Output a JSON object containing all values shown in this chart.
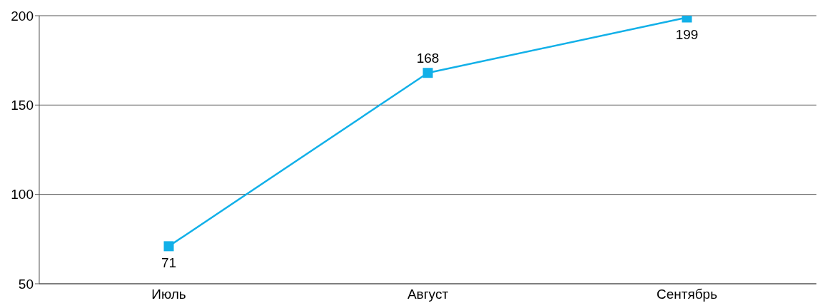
{
  "chart_data": {
    "type": "line",
    "categories": [
      "Июль",
      "Август",
      "Сентябрь"
    ],
    "series": [
      {
        "color": "#12b0e8",
        "values": [
          71,
          168,
          199
        ]
      }
    ],
    "ylim": [
      50,
      200
    ],
    "yticks": [
      50,
      100,
      150,
      200
    ],
    "grid": "y",
    "marker": "square",
    "data_labels": true,
    "legend": false
  }
}
